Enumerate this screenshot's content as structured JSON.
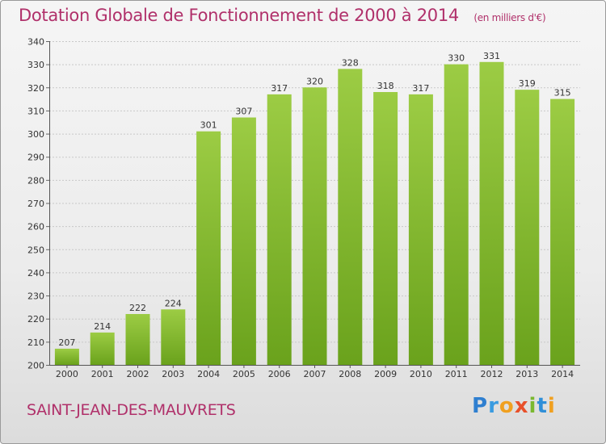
{
  "header": {
    "title": "Dotation Globale de Fonctionnement de 2000 à 2014",
    "units": "(en milliers d'€)"
  },
  "commune": "SAINT-JEAN-DES-MAUVRETS",
  "logo": {
    "text": "Proxiti",
    "letters": [
      "P",
      "r",
      "o",
      "x",
      "i",
      "t",
      "i"
    ]
  },
  "colors": {
    "bar_light": "#9ccc44",
    "bar_dark": "#6aa21c",
    "title": "#b0306a"
  },
  "chart_data": {
    "type": "bar",
    "categories": [
      "2000",
      "2001",
      "2002",
      "2003",
      "2004",
      "2005",
      "2006",
      "2007",
      "2008",
      "2009",
      "2010",
      "2011",
      "2012",
      "2013",
      "2014"
    ],
    "values": [
      207,
      214,
      222,
      224,
      301,
      307,
      317,
      320,
      328,
      318,
      317,
      330,
      331,
      319,
      315
    ],
    "ylim": [
      200,
      340
    ],
    "yticks": [
      200,
      210,
      220,
      230,
      240,
      250,
      260,
      270,
      280,
      290,
      300,
      310,
      320,
      330,
      340
    ],
    "grid": true
  }
}
